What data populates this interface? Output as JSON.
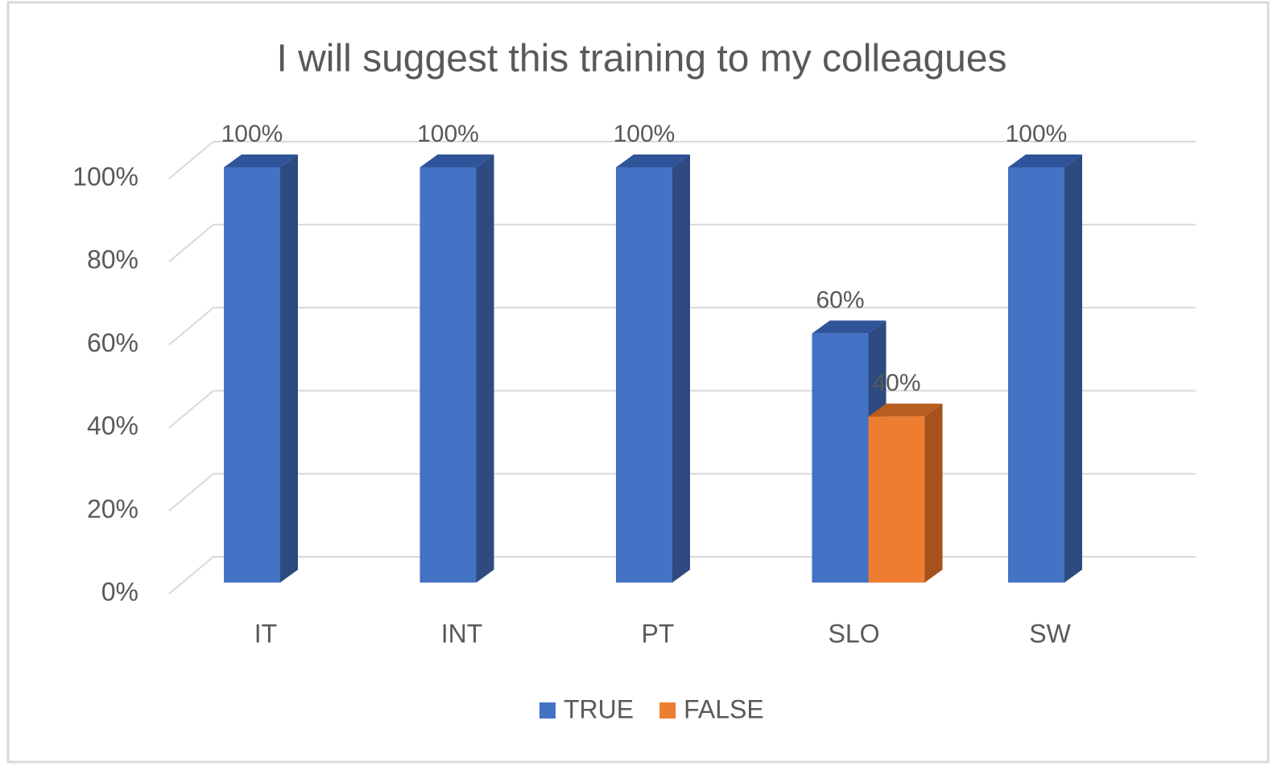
{
  "chart_data": {
    "type": "bar3d",
    "title": "I will suggest this training to my colleagues",
    "categories": [
      "IT",
      "INT",
      "PT",
      "SLO",
      "SW"
    ],
    "series": [
      {
        "name": "TRUE",
        "color": "#4472c4",
        "side_color": "#2e4a80",
        "top_color": "#30549a",
        "values": [
          100,
          100,
          100,
          60,
          100
        ],
        "value_labels": [
          "100%",
          "100%",
          "100%",
          "60%",
          "100%"
        ]
      },
      {
        "name": "FALSE",
        "color": "#ed7d31",
        "side_color": "#a5521c",
        "top_color": "#b85d20",
        "values": [
          null,
          null,
          null,
          40,
          null
        ],
        "value_labels": [
          null,
          null,
          null,
          "40%",
          null
        ]
      }
    ],
    "ylim": [
      0,
      100
    ],
    "yticks": [
      {
        "value": 0,
        "label": "0%"
      },
      {
        "value": 20,
        "label": "20%"
      },
      {
        "value": 40,
        "label": "40%"
      },
      {
        "value": 60,
        "label": "60%"
      },
      {
        "value": 80,
        "label": "80%"
      },
      {
        "value": 100,
        "label": "100%"
      }
    ],
    "grid": true,
    "legend": "bottom"
  }
}
